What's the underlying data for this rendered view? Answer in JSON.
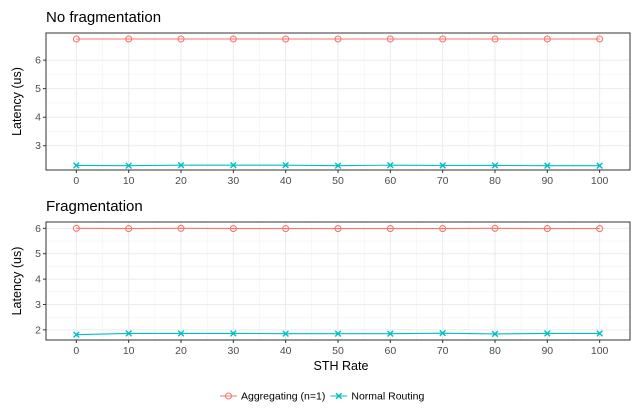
{
  "chart_data": [
    {
      "type": "line",
      "title": "No fragmentation",
      "xlabel": "",
      "ylabel": "Latency (us)",
      "x": [
        0,
        10,
        20,
        30,
        40,
        50,
        60,
        70,
        80,
        90,
        100
      ],
      "ylim": [
        2.15,
        6.95
      ],
      "yticks": [
        3,
        4,
        5,
        6
      ],
      "grid": true,
      "series": [
        {
          "name": "Aggregating (n=1)",
          "color": "#F8766D",
          "marker": "circle",
          "values": [
            6.74,
            6.74,
            6.74,
            6.74,
            6.74,
            6.74,
            6.74,
            6.74,
            6.74,
            6.74,
            6.74
          ]
        },
        {
          "name": "Normal Routing",
          "color": "#00BFC4",
          "marker": "x",
          "values": [
            2.31,
            2.3,
            2.32,
            2.32,
            2.32,
            2.3,
            2.32,
            2.31,
            2.31,
            2.3,
            2.3
          ]
        }
      ]
    },
    {
      "type": "line",
      "title": "Fragmentation",
      "xlabel": "STH Rate",
      "ylabel": "Latency (us)",
      "x": [
        0,
        10,
        20,
        30,
        40,
        50,
        60,
        70,
        80,
        90,
        100
      ],
      "ylim": [
        1.6,
        6.25
      ],
      "yticks": [
        2,
        3,
        4,
        5,
        6
      ],
      "grid": true,
      "series": [
        {
          "name": "Aggregating (n=1)",
          "color": "#F8766D",
          "marker": "circle",
          "values": [
            6.0,
            5.99,
            6.0,
            5.99,
            5.99,
            5.99,
            5.99,
            5.99,
            6.0,
            5.99,
            5.99
          ]
        },
        {
          "name": "Normal Routing",
          "color": "#00BFC4",
          "marker": "x",
          "values": [
            1.81,
            1.86,
            1.86,
            1.86,
            1.85,
            1.85,
            1.85,
            1.87,
            1.84,
            1.86,
            1.86
          ]
        }
      ]
    }
  ],
  "legend": {
    "position": "bottom",
    "items": [
      {
        "label": "Aggregating (n=1)",
        "color": "#F8766D",
        "marker": "circle"
      },
      {
        "label": "Normal Routing",
        "color": "#00BFC4",
        "marker": "x"
      }
    ]
  }
}
